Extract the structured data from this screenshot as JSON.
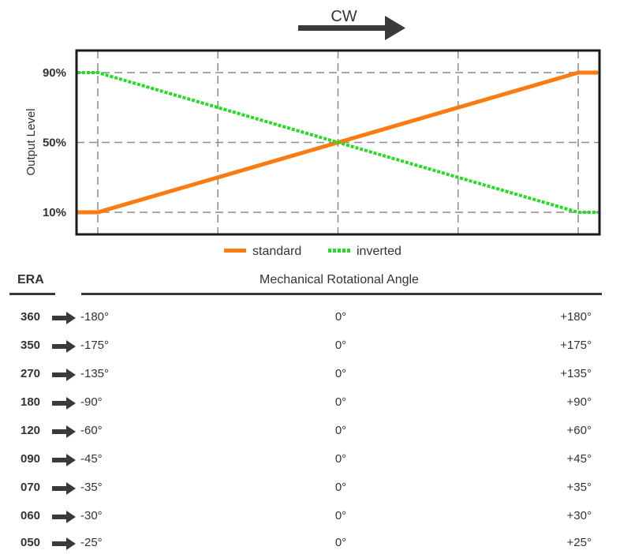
{
  "direction": {
    "label": "CW"
  },
  "chart_data": {
    "type": "line",
    "ylabel": "Output Level",
    "yticks": [
      "90%",
      "50%",
      "10%"
    ],
    "ytick_values": [
      90,
      50,
      10
    ],
    "xlabel": "Mechanical Rotational Angle",
    "x_range": [
      -1,
      1
    ],
    "y_range": [
      0,
      100
    ],
    "grid": true,
    "legend_position": "bottom-center",
    "series": [
      {
        "name": "standard",
        "color": "#FF7A10",
        "style": "solid",
        "points": [
          [
            -1.1,
            10
          ],
          [
            -1,
            10
          ],
          [
            1,
            90
          ],
          [
            1.1,
            90
          ]
        ]
      },
      {
        "name": "inverted",
        "color": "#22DD22",
        "style": "dotted",
        "points": [
          [
            -1.1,
            90
          ],
          [
            -1,
            90
          ],
          [
            1,
            10
          ],
          [
            1.1,
            10
          ]
        ]
      }
    ]
  },
  "table": {
    "era_header": "ERA",
    "angle_header": "Mechanical Rotational Angle",
    "rows": [
      {
        "era": "360",
        "min": "-180°",
        "zero": "0°",
        "max": "+180°"
      },
      {
        "era": "350",
        "min": "-175°",
        "zero": "0°",
        "max": "+175°"
      },
      {
        "era": "270",
        "min": "-135°",
        "zero": "0°",
        "max": "+135°"
      },
      {
        "era": "180",
        "min": "-90°",
        "zero": "0°",
        "max": "+90°"
      },
      {
        "era": "120",
        "min": "-60°",
        "zero": "0°",
        "max": "+60°"
      },
      {
        "era": "090",
        "min": "-45°",
        "zero": "0°",
        "max": "+45°"
      },
      {
        "era": "070",
        "min": "-35°",
        "zero": "0°",
        "max": "+35°"
      },
      {
        "era": "060",
        "min": "-30°",
        "zero": "0°",
        "max": "+30°"
      },
      {
        "era": "050",
        "min": "-25°",
        "zero": "0°",
        "max": "+25°"
      }
    ]
  }
}
